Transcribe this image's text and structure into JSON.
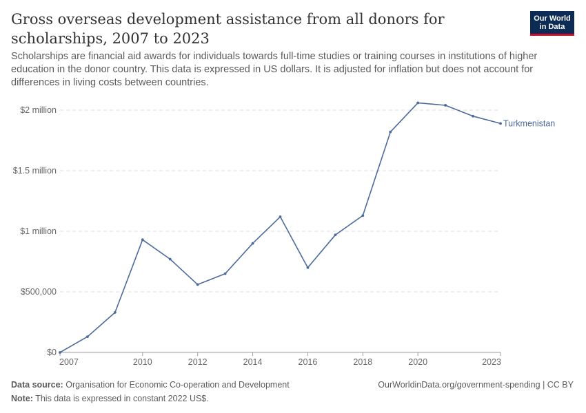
{
  "header": {
    "title": "Gross overseas development assistance from all donors for scholarships, 2007 to 2023",
    "subtitle": "Scholarships are financial aid awards for individuals towards full-time studies or training courses in institutions of higher education in the donor country. This data is expressed in US dollars. It is adjusted for inflation but does not account for differences in living costs between countries."
  },
  "logo": {
    "line1": "Our World",
    "line2": "in Data",
    "bg_color": "#0c2c56",
    "accent_color": "#c8102e"
  },
  "chart_data": {
    "type": "line",
    "title": "Gross overseas development assistance from all donors for scholarships, 2007 to 2023",
    "x": [
      2007,
      2008,
      2009,
      2010,
      2011,
      2012,
      2013,
      2014,
      2015,
      2016,
      2017,
      2018,
      2019,
      2020,
      2021,
      2022,
      2023
    ],
    "series": [
      {
        "name": "Turkmenistan",
        "color": "#4c6a9c",
        "values": [
          0,
          130000,
          330000,
          930000,
          770000,
          560000,
          650000,
          900000,
          1120000,
          700000,
          970000,
          1130000,
          1820000,
          2060000,
          2040000,
          1950000,
          1890000
        ]
      }
    ],
    "xlim": [
      2007,
      2023
    ],
    "ylim": [
      0,
      2000000
    ],
    "x_ticks": [
      2007,
      2010,
      2012,
      2014,
      2016,
      2018,
      2020,
      2023
    ],
    "y_ticks": [
      {
        "value": 0,
        "label": "$0"
      },
      {
        "value": 500000,
        "label": "$500,000"
      },
      {
        "value": 1000000,
        "label": "$1 million"
      },
      {
        "value": 1500000,
        "label": "$1.5 million"
      },
      {
        "value": 2000000,
        "label": "$2 million"
      }
    ],
    "grid": true,
    "grid_style": "dashed",
    "legend": "line-end label"
  },
  "footer": {
    "source_label": "Data source:",
    "source_text": "Organisation for Economic Co-operation and Development",
    "note_label": "Note:",
    "note_text": "This data is expressed in constant 2022 US$.",
    "url_text": "OurWorldinData.org/government-spending | CC BY"
  }
}
